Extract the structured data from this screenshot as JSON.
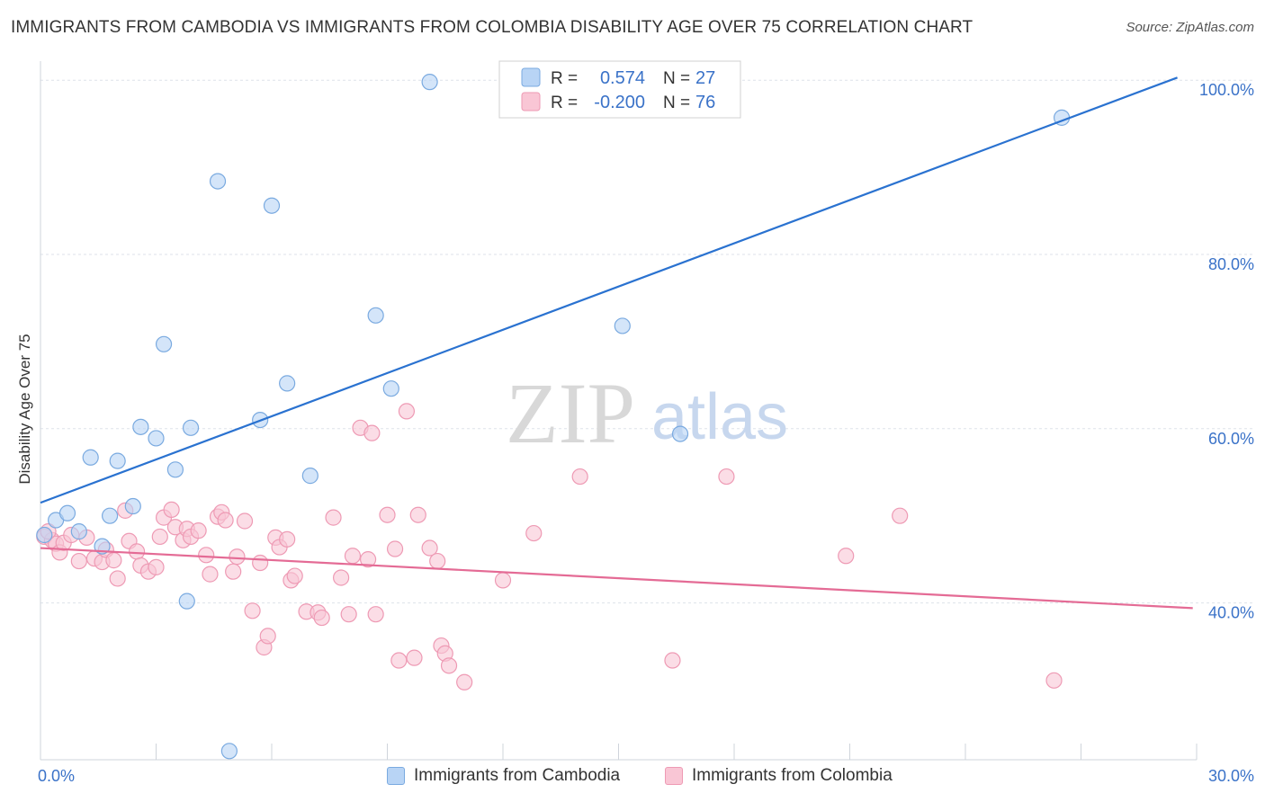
{
  "title": "IMMIGRANTS FROM CAMBODIA VS IMMIGRANTS FROM COLOMBIA DISABILITY AGE OVER 75 CORRELATION CHART",
  "source": "Source: ZipAtlas.com",
  "watermark": {
    "zip": "ZIP",
    "atlas": "atlas"
  },
  "colors": {
    "cambodia_fill": "#b8d4f5",
    "cambodia_stroke": "#7aaae0",
    "cambodia_line": "#2a72d0",
    "colombia_fill": "#f9c6d5",
    "colombia_stroke": "#ee9ab4",
    "colombia_line": "#e46b95",
    "axis_label": "#3a72c8",
    "grid": "#dde2ea"
  },
  "chart_data": {
    "type": "scatter",
    "ylabel": "Disability Age Over 75",
    "xlim": [
      0,
      30
    ],
    "ylim": [
      22,
      101
    ],
    "x_tick_labels": [
      "0.0%",
      "30.0%"
    ],
    "y_ticks": [
      40,
      60,
      80,
      100
    ],
    "y_tick_labels": [
      "40.0%",
      "60.0%",
      "80.0%",
      "100.0%"
    ],
    "grid": true,
    "legend_placement": "top-center",
    "stats": [
      {
        "r_label": "R =",
        "r_value": "0.574",
        "n_label": "N =",
        "n_value": "27"
      },
      {
        "r_label": "R =",
        "r_value": "-0.200",
        "n_label": "N =",
        "n_value": "76"
      }
    ],
    "series": [
      {
        "name": "Immigrants from Cambodia",
        "points": [
          [
            0.1,
            47.8
          ],
          [
            0.4,
            49.5
          ],
          [
            0.7,
            50.3
          ],
          [
            1.0,
            48.2
          ],
          [
            1.3,
            56.7
          ],
          [
            1.6,
            46.5
          ],
          [
            1.8,
            50.0
          ],
          [
            2.0,
            56.3
          ],
          [
            2.4,
            51.1
          ],
          [
            2.6,
            60.2
          ],
          [
            3.0,
            58.9
          ],
          [
            3.2,
            69.7
          ],
          [
            3.5,
            55.3
          ],
          [
            3.8,
            40.2
          ],
          [
            3.9,
            60.1
          ],
          [
            4.6,
            88.4
          ],
          [
            4.9,
            23.0
          ],
          [
            5.7,
            61.0
          ],
          [
            6.0,
            85.6
          ],
          [
            6.4,
            65.2
          ],
          [
            7.0,
            54.6
          ],
          [
            8.7,
            73.0
          ],
          [
            9.1,
            64.6
          ],
          [
            10.1,
            99.8
          ],
          [
            15.1,
            71.8
          ],
          [
            16.6,
            59.4
          ],
          [
            26.5,
            95.7
          ]
        ],
        "trend": {
          "x": [
            0,
            29.5
          ],
          "y": [
            51.5,
            100.3
          ]
        }
      },
      {
        "name": "Immigrants from Colombia",
        "points": [
          [
            0.1,
            47.6
          ],
          [
            0.3,
            47.2
          ],
          [
            0.4,
            46.8
          ],
          [
            0.5,
            45.8
          ],
          [
            0.6,
            46.9
          ],
          [
            1.0,
            44.8
          ],
          [
            1.2,
            47.5
          ],
          [
            1.4,
            45.1
          ],
          [
            1.6,
            44.7
          ],
          [
            1.7,
            46.1
          ],
          [
            1.9,
            44.9
          ],
          [
            2.0,
            42.8
          ],
          [
            2.2,
            50.6
          ],
          [
            2.3,
            47.1
          ],
          [
            2.5,
            45.9
          ],
          [
            2.6,
            44.3
          ],
          [
            2.8,
            43.6
          ],
          [
            3.0,
            44.1
          ],
          [
            3.1,
            47.6
          ],
          [
            3.2,
            49.8
          ],
          [
            3.4,
            50.7
          ],
          [
            3.5,
            48.7
          ],
          [
            3.7,
            47.2
          ],
          [
            3.8,
            48.5
          ],
          [
            3.9,
            47.6
          ],
          [
            4.1,
            48.3
          ],
          [
            4.3,
            45.5
          ],
          [
            4.4,
            43.3
          ],
          [
            4.6,
            49.9
          ],
          [
            4.7,
            50.4
          ],
          [
            4.8,
            49.5
          ],
          [
            5.0,
            43.6
          ],
          [
            5.1,
            45.3
          ],
          [
            5.3,
            49.4
          ],
          [
            5.5,
            39.1
          ],
          [
            5.7,
            44.6
          ],
          [
            5.8,
            34.9
          ],
          [
            5.9,
            36.2
          ],
          [
            6.1,
            47.5
          ],
          [
            6.2,
            46.4
          ],
          [
            6.4,
            47.3
          ],
          [
            6.5,
            42.6
          ],
          [
            6.6,
            43.1
          ],
          [
            6.9,
            39.0
          ],
          [
            7.2,
            38.9
          ],
          [
            7.3,
            38.3
          ],
          [
            7.6,
            49.8
          ],
          [
            7.8,
            42.9
          ],
          [
            8.0,
            38.7
          ],
          [
            8.1,
            45.4
          ],
          [
            8.3,
            60.1
          ],
          [
            8.5,
            45.0
          ],
          [
            8.6,
            59.5
          ],
          [
            8.7,
            38.7
          ],
          [
            9.0,
            50.1
          ],
          [
            9.2,
            46.2
          ],
          [
            9.3,
            33.4
          ],
          [
            9.5,
            62.0
          ],
          [
            9.7,
            33.7
          ],
          [
            9.8,
            50.1
          ],
          [
            10.1,
            46.3
          ],
          [
            10.3,
            44.8
          ],
          [
            10.4,
            35.1
          ],
          [
            10.5,
            34.2
          ],
          [
            10.6,
            32.8
          ],
          [
            11.0,
            30.9
          ],
          [
            12.0,
            42.6
          ],
          [
            12.8,
            48.0
          ],
          [
            14.0,
            54.5
          ],
          [
            16.4,
            33.4
          ],
          [
            17.8,
            54.5
          ],
          [
            20.9,
            45.4
          ],
          [
            22.3,
            50.0
          ],
          [
            26.3,
            31.1
          ],
          [
            0.2,
            48.2
          ],
          [
            0.8,
            47.8
          ]
        ],
        "trend": {
          "x": [
            0,
            29.9
          ],
          "y": [
            46.3,
            39.4
          ]
        }
      }
    ]
  },
  "legend": {
    "cambodia": "Immigrants from Cambodia",
    "colombia": "Immigrants from Colombia"
  }
}
